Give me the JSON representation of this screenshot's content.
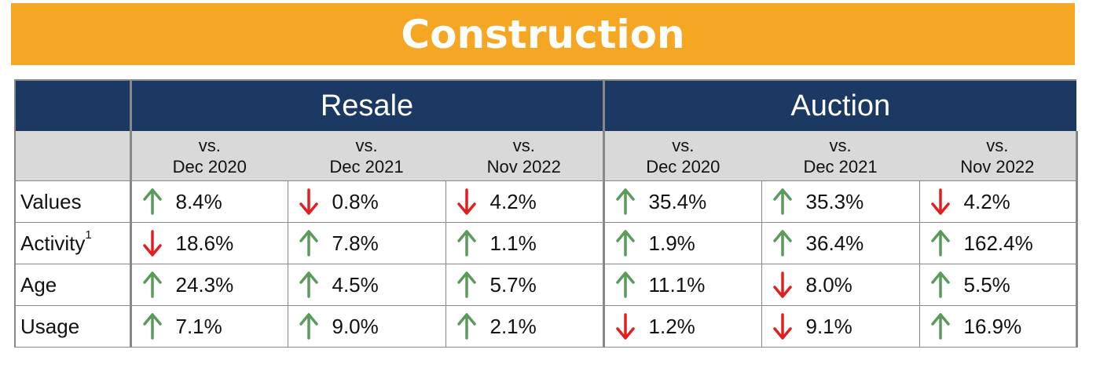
{
  "title": "Construction",
  "groups": [
    "Resale",
    "Auction"
  ],
  "comparisons": [
    {
      "prefix": "vs.",
      "period": "Dec 2020"
    },
    {
      "prefix": "vs.",
      "period": "Dec 2021"
    },
    {
      "prefix": "vs.",
      "period": "Nov 2022"
    },
    {
      "prefix": "vs.",
      "period": "Dec 2020"
    },
    {
      "prefix": "vs.",
      "period": "Dec 2021"
    },
    {
      "prefix": "vs.",
      "period": "Nov 2022"
    }
  ],
  "rows": [
    {
      "label": "Values",
      "footnote": "",
      "cells": [
        {
          "dir": "up",
          "value": "8.4%"
        },
        {
          "dir": "down",
          "value": "0.8%"
        },
        {
          "dir": "down",
          "value": "4.2%"
        },
        {
          "dir": "up",
          "value": "35.4%"
        },
        {
          "dir": "up",
          "value": "35.3%"
        },
        {
          "dir": "down",
          "value": "4.2%"
        }
      ]
    },
    {
      "label": "Activity",
      "footnote": "1",
      "cells": [
        {
          "dir": "down",
          "value": "18.6%"
        },
        {
          "dir": "up",
          "value": "7.8%"
        },
        {
          "dir": "up",
          "value": "1.1%"
        },
        {
          "dir": "up",
          "value": "1.9%"
        },
        {
          "dir": "up",
          "value": "36.4%"
        },
        {
          "dir": "up",
          "value": "162.4%"
        }
      ]
    },
    {
      "label": "Age",
      "footnote": "",
      "cells": [
        {
          "dir": "up",
          "value": "24.3%"
        },
        {
          "dir": "up",
          "value": "4.5%"
        },
        {
          "dir": "up",
          "value": "5.7%"
        },
        {
          "dir": "up",
          "value": "11.1%"
        },
        {
          "dir": "down",
          "value": "8.0%"
        },
        {
          "dir": "up",
          "value": "5.5%"
        }
      ]
    },
    {
      "label": "Usage",
      "footnote": "",
      "cells": [
        {
          "dir": "up",
          "value": "7.1%"
        },
        {
          "dir": "up",
          "value": "9.0%"
        },
        {
          "dir": "up",
          "value": "2.1%"
        },
        {
          "dir": "down",
          "value": "1.2%"
        },
        {
          "dir": "down",
          "value": "9.1%"
        },
        {
          "dir": "up",
          "value": "16.9%"
        }
      ]
    }
  ],
  "colors": {
    "banner": "#f5a623",
    "header": "#1c3964",
    "subheader": "#d9d9d9",
    "up": "#5a9a5a",
    "down": "#e02020"
  },
  "icons": {
    "up": "up-arrow-icon",
    "down": "down-arrow-icon"
  }
}
